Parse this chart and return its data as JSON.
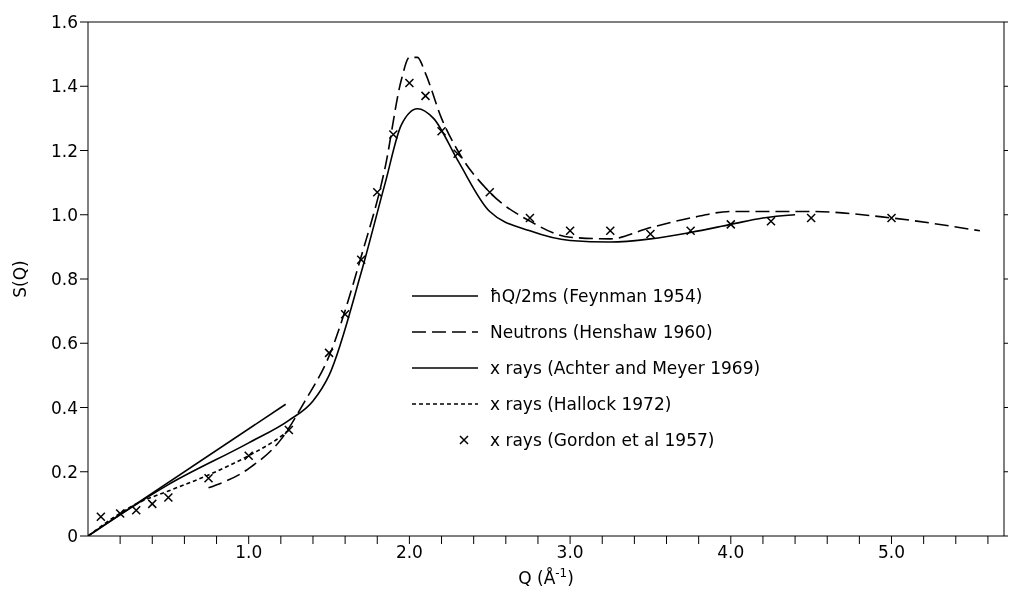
{
  "chart_data": {
    "type": "line",
    "xlabel": "Q (Å$^{-1}$)",
    "ylabel": "S(Q)",
    "xlim": [
      0,
      5.7
    ],
    "ylim": [
      0,
      1.6
    ],
    "xticks": [
      {
        "value": 0.2,
        "label": null
      },
      {
        "value": 0.4,
        "label": null
      },
      {
        "value": 0.6,
        "label": null
      },
      {
        "value": 0.8,
        "label": null
      },
      {
        "value": 1,
        "label": "1.0"
      },
      {
        "value": 1.2,
        "label": null
      },
      {
        "value": 1.4,
        "label": null
      },
      {
        "value": 1.6,
        "label": null
      },
      {
        "value": 1.8,
        "label": null
      },
      {
        "value": 2,
        "label": "2.0"
      },
      {
        "value": 2.2,
        "label": null
      },
      {
        "value": 2.4,
        "label": null
      },
      {
        "value": 2.6,
        "label": null
      },
      {
        "value": 2.8,
        "label": null
      },
      {
        "value": 3,
        "label": "3.0"
      },
      {
        "value": 3.2,
        "label": null
      },
      {
        "value": 3.4,
        "label": null
      },
      {
        "value": 3.6,
        "label": null
      },
      {
        "value": 3.8,
        "label": null
      },
      {
        "value": 4,
        "label": "4.0"
      },
      {
        "value": 4.2,
        "label": null
      },
      {
        "value": 4.4,
        "label": null
      },
      {
        "value": 4.6,
        "label": null
      },
      {
        "value": 4.8,
        "label": null
      },
      {
        "value": 5,
        "label": "5.0"
      },
      {
        "value": 5.2,
        "label": null
      },
      {
        "value": 5.4,
        "label": null
      },
      {
        "value": 5.6,
        "label": null
      }
    ],
    "yticks": [
      0,
      0.2,
      0.4,
      0.6,
      0.8,
      {
        "value": 1,
        "label": "1.0"
      },
      1.2,
      1.4,
      1.6
    ],
    "grid": false,
    "legend": "center",
    "series": [
      {
        "name": "ħQ/2ms (Feynman 1954)",
        "color": "#000000",
        "line_style": "solid",
        "marker": "none",
        "x": [
          0,
          1.23
        ],
        "values": [
          0,
          0.41
        ]
      },
      {
        "name": "Neutrons (Henshaw 1960)",
        "color": "#000000",
        "line_style": "dashed",
        "marker": "none",
        "x": [
          0.75,
          1.0,
          1.2,
          1.35,
          1.5,
          1.7,
          1.85,
          1.95,
          2.0,
          2.05,
          2.1,
          2.2,
          2.3,
          2.5,
          2.75,
          3.0,
          3.25,
          3.5,
          3.75,
          4.0,
          4.5,
          5.0,
          5.55
        ],
        "values": [
          0.15,
          0.21,
          0.3,
          0.42,
          0.56,
          0.87,
          1.15,
          1.42,
          1.49,
          1.49,
          1.44,
          1.3,
          1.2,
          1.07,
          0.98,
          0.93,
          0.925,
          0.96,
          0.99,
          1.01,
          1.01,
          0.99,
          0.95
        ]
      },
      {
        "name": "x rays (Achter and Meyer 1969)",
        "color": "#000000",
        "line_style": "solid",
        "marker": "none",
        "x": [
          0,
          0.5,
          1.0,
          1.25,
          1.4,
          1.5,
          1.7,
          1.85,
          1.95,
          2.05,
          2.15,
          2.3,
          2.5,
          2.75,
          3.0,
          3.25,
          3.5,
          3.75,
          4.0,
          4.2,
          4.4
        ],
        "values": [
          0,
          0.16,
          0.29,
          0.36,
          0.42,
          0.5,
          0.82,
          1.1,
          1.28,
          1.33,
          1.3,
          1.17,
          1.01,
          0.95,
          0.92,
          0.915,
          0.925,
          0.945,
          0.97,
          0.99,
          1.0
        ]
      },
      {
        "name": "x rays (Hallock 1972)",
        "color": "#000000",
        "line_style": "dotted",
        "marker": "none",
        "x": [
          0,
          0.3,
          0.5,
          0.75,
          1.0,
          1.2,
          1.25
        ],
        "values": [
          0,
          0.1,
          0.14,
          0.19,
          0.25,
          0.31,
          0.33
        ]
      },
      {
        "name": "x rays (Gordon et al 1957)",
        "color": "#000000",
        "type": "scatter",
        "marker": "cross",
        "x": [
          0.08,
          0.2,
          0.3,
          0.4,
          0.5,
          0.75,
          1.0,
          1.25,
          1.5,
          1.6,
          1.7,
          1.8,
          1.9,
          2.0,
          2.1,
          2.2,
          2.3,
          2.5,
          2.75,
          3.0,
          3.25,
          3.5,
          3.75,
          4.0,
          4.25,
          4.5,
          5.0
        ],
        "values": [
          0.06,
          0.07,
          0.08,
          0.1,
          0.12,
          0.18,
          0.25,
          0.33,
          0.57,
          0.69,
          0.86,
          1.07,
          1.25,
          1.41,
          1.37,
          1.26,
          1.19,
          1.07,
          0.99,
          0.95,
          0.95,
          0.94,
          0.95,
          0.97,
          0.98,
          0.99,
          0.99
        ]
      }
    ]
  }
}
